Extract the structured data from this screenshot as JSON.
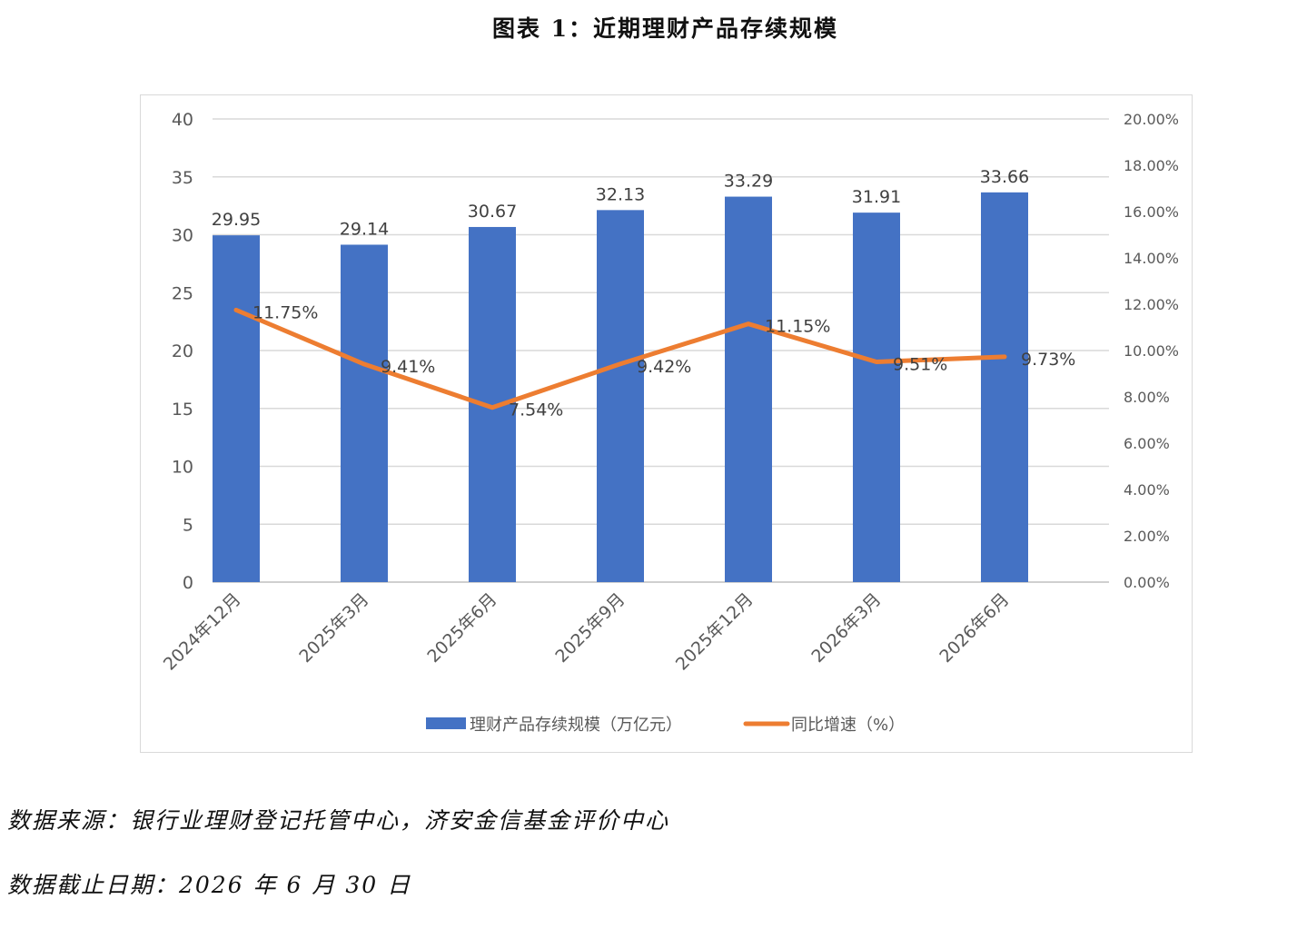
{
  "figure": {
    "title": "图表 1：近期理财产品存续规模"
  },
  "chart_data": {
    "type": "bar",
    "categories": [
      "2024年12月",
      "2025年3月",
      "2025年6月",
      "2025年9月",
      "2025年12月",
      "2026年3月",
      "2026年6月"
    ],
    "series": [
      {
        "name": "理财产品存续规模（万亿元）",
        "type": "bar",
        "axis": "left",
        "color": "#4472c4",
        "values": [
          29.95,
          29.14,
          30.67,
          32.13,
          33.29,
          31.91,
          33.66
        ],
        "labels": [
          "29.95",
          "29.14",
          "30.67",
          "32.13",
          "33.29",
          "31.91",
          "33.66"
        ]
      },
      {
        "name": "同比增速（%）",
        "type": "line",
        "axis": "right",
        "color": "#ed7d31",
        "values": [
          11.75,
          9.41,
          7.54,
          9.42,
          11.15,
          9.51,
          9.73
        ],
        "labels": [
          "11.75%",
          "9.41%",
          "7.54%",
          "9.42%",
          "11.15%",
          "9.51%",
          "9.73%"
        ]
      }
    ],
    "y_left": {
      "range": [
        0,
        40
      ],
      "ticks": [
        "0",
        "5",
        "10",
        "15",
        "20",
        "25",
        "30",
        "35",
        "40"
      ]
    },
    "y_right": {
      "range": [
        0,
        20
      ],
      "ticks": [
        "0.00%",
        "2.00%",
        "4.00%",
        "6.00%",
        "8.00%",
        "10.00%",
        "12.00%",
        "14.00%",
        "16.00%",
        "18.00%",
        "20.00%"
      ]
    },
    "grid": true,
    "legend_position": "bottom"
  },
  "footnotes": {
    "source": "数据来源：银行业理财登记托管中心，济安金信基金评价中心",
    "date": "数据截止日期：2026 年 6 月 30 日"
  }
}
